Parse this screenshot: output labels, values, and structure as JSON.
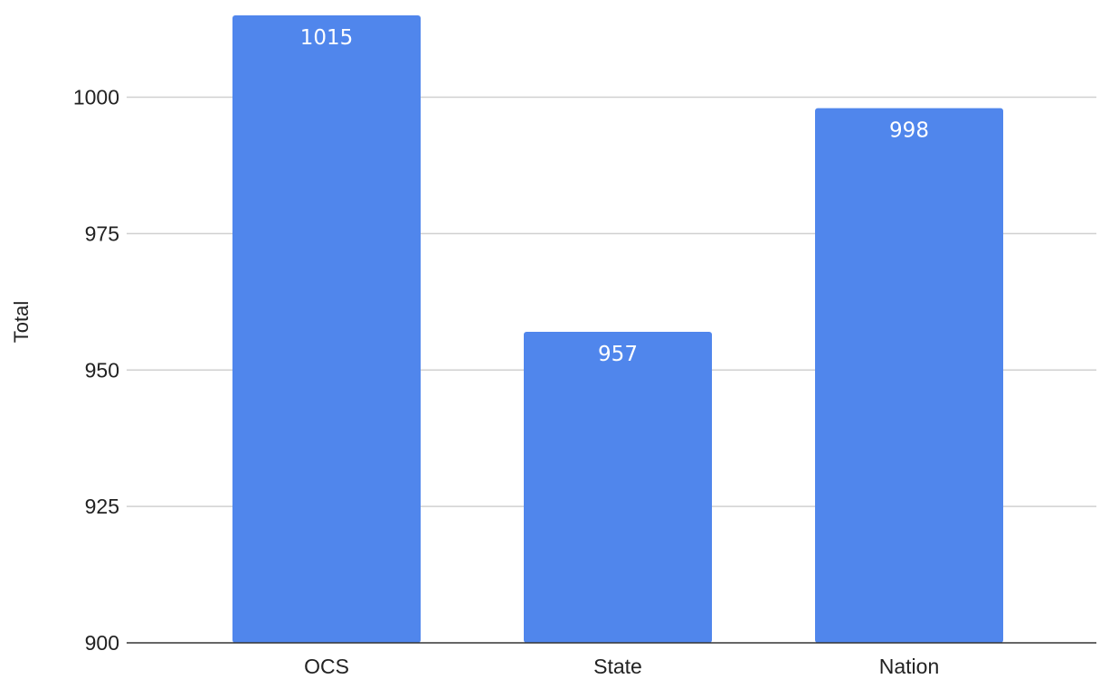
{
  "chart_data": {
    "type": "bar",
    "title": "",
    "xlabel": "",
    "ylabel": "Total",
    "ylim": [
      900,
      1015
    ],
    "yticks": [
      900,
      925,
      950,
      975,
      1000
    ],
    "categories": [
      "OCS",
      "State",
      "Nation"
    ],
    "series": [
      {
        "values": [
          1015,
          957,
          998
        ],
        "color": "#5086ec"
      }
    ],
    "data_labels": [
      "1015",
      "957",
      "998"
    ],
    "grid": true,
    "gridline_color": "#d0d0d0",
    "legend": "none"
  }
}
